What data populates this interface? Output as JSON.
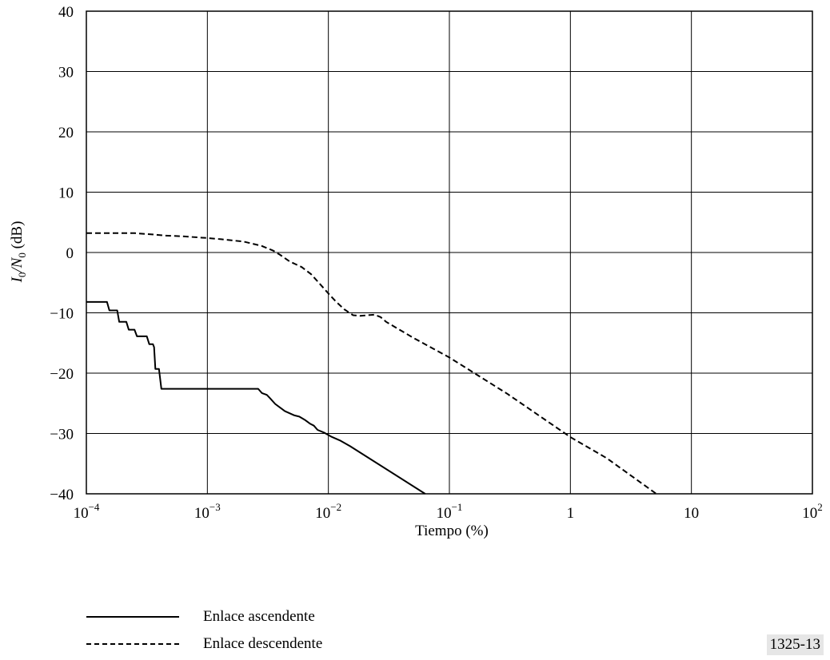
{
  "chart_data": {
    "type": "line",
    "xlabel": "Tiempo (%)",
    "ylabel_base": "I",
    "ylabel_sub1": "0",
    "ylabel_mid": "/N",
    "ylabel_sub2": "0",
    "ylabel_unit": " (dB)",
    "xscale": "log",
    "xlim": [
      0.0001,
      100
    ],
    "ylim": [
      -40,
      40
    ],
    "grid": true,
    "x_ticks": [
      {
        "value": 0.0001,
        "base": "10",
        "exp": "−4"
      },
      {
        "value": 0.001,
        "base": "10",
        "exp": "−3"
      },
      {
        "value": 0.01,
        "base": "10",
        "exp": "−2"
      },
      {
        "value": 0.1,
        "base": "10",
        "exp": "−1"
      },
      {
        "value": 1,
        "base": "1",
        "exp": ""
      },
      {
        "value": 10,
        "base": "10",
        "exp": ""
      },
      {
        "value": 100,
        "base": "10",
        "exp": "2"
      }
    ],
    "y_ticks": [
      {
        "value": 40,
        "label": "40"
      },
      {
        "value": 30,
        "label": "30"
      },
      {
        "value": 20,
        "label": "20"
      },
      {
        "value": 10,
        "label": "10"
      },
      {
        "value": 0,
        "label": "0"
      },
      {
        "value": -10,
        "label": "−10"
      },
      {
        "value": -20,
        "label": "−20"
      },
      {
        "value": -30,
        "label": "−30"
      },
      {
        "value": -40,
        "label": "−40"
      }
    ],
    "series": [
      {
        "name": "Enlace ascendente",
        "style": "solid",
        "color": "#000000",
        "points": [
          [
            0.0001,
            -8.2
          ],
          [
            0.000148,
            -8.2
          ],
          [
            0.000155,
            -9.6
          ],
          [
            0.00018,
            -9.6
          ],
          [
            0.000187,
            -11.5
          ],
          [
            0.000214,
            -11.5
          ],
          [
            0.000224,
            -12.8
          ],
          [
            0.00025,
            -12.8
          ],
          [
            0.000262,
            -13.9
          ],
          [
            0.000316,
            -13.9
          ],
          [
            0.000331,
            -15.2
          ],
          [
            0.000355,
            -15.2
          ],
          [
            0.000363,
            -15.7
          ],
          [
            0.000372,
            -19.3
          ],
          [
            0.000398,
            -19.3
          ],
          [
            0.000417,
            -22.6
          ],
          [
            0.00263,
            -22.6
          ],
          [
            0.00282,
            -23.3
          ],
          [
            0.0031,
            -23.6
          ],
          [
            0.00331,
            -24.2
          ],
          [
            0.00363,
            -25.1
          ],
          [
            0.00437,
            -26.3
          ],
          [
            0.00525,
            -27.0
          ],
          [
            0.00575,
            -27.2
          ],
          [
            0.00646,
            -27.8
          ],
          [
            0.00708,
            -28.4
          ],
          [
            0.00759,
            -28.7
          ],
          [
            0.00813,
            -29.4
          ],
          [
            0.0093,
            -29.9
          ],
          [
            0.0105,
            -30.5
          ],
          [
            0.0126,
            -31.2
          ],
          [
            0.0151,
            -32.1
          ],
          [
            0.0631,
            -40.0
          ]
        ]
      },
      {
        "name": "Enlace descendente",
        "style": "dashed",
        "color": "#000000",
        "points": [
          [
            0.0001,
            3.2
          ],
          [
            0.00025,
            3.2
          ],
          [
            0.00035,
            3.0
          ],
          [
            0.00045,
            2.8
          ],
          [
            0.0006,
            2.7
          ],
          [
            0.001,
            2.4
          ],
          [
            0.0013,
            2.2
          ],
          [
            0.002,
            1.8
          ],
          [
            0.0028,
            1.1
          ],
          [
            0.0035,
            0.3
          ],
          [
            0.004,
            -0.4
          ],
          [
            0.0048,
            -1.5
          ],
          [
            0.006,
            -2.4
          ],
          [
            0.0072,
            -3.6
          ],
          [
            0.0085,
            -5.2
          ],
          [
            0.01,
            -6.8
          ],
          [
            0.0115,
            -8.1
          ],
          [
            0.0135,
            -9.4
          ],
          [
            0.016,
            -10.4
          ],
          [
            0.0185,
            -10.5
          ],
          [
            0.021,
            -10.4
          ],
          [
            0.024,
            -10.3
          ],
          [
            0.027,
            -10.7
          ],
          [
            0.03,
            -11.5
          ],
          [
            0.05,
            -14.1
          ],
          [
            0.1,
            -17.4
          ],
          [
            0.3,
            -23.4
          ],
          [
            1.0,
            -30.6
          ],
          [
            2.0,
            -34.1
          ],
          [
            5.13,
            -40.0
          ]
        ]
      }
    ]
  },
  "legend": {
    "ascendente_label": "Enlace ascendente",
    "descendente_label": "Enlace descendente"
  },
  "figure_id": "1325-13"
}
